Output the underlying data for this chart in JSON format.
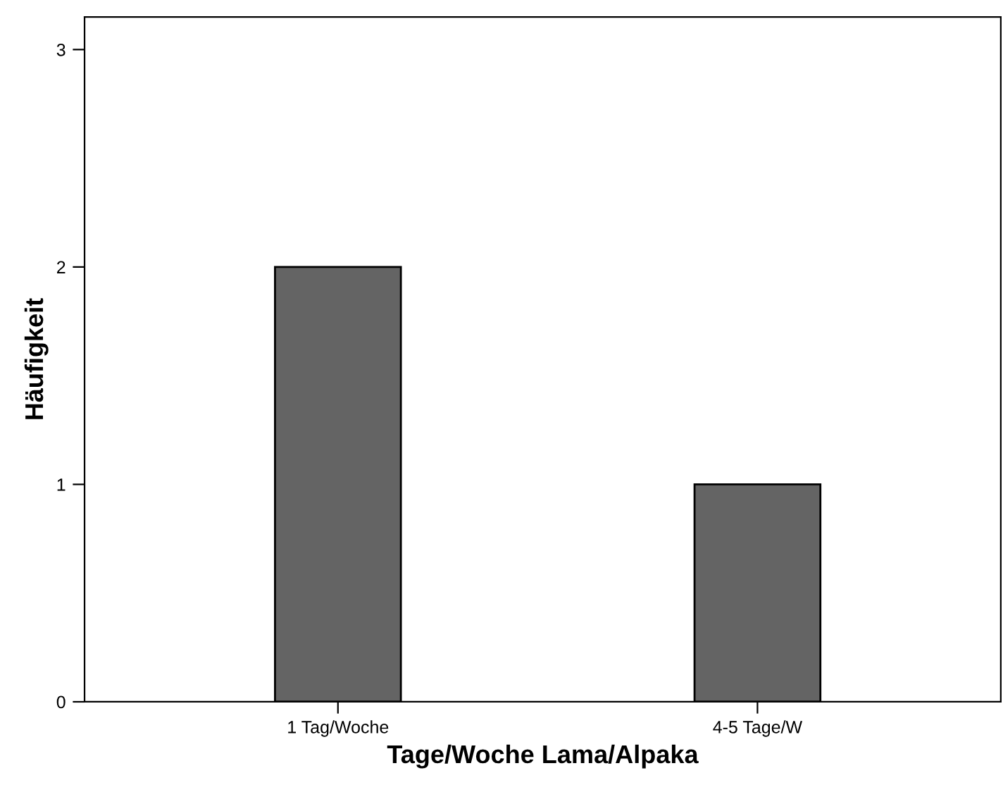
{
  "chart_data": {
    "type": "bar",
    "xlabel": "Tage/Woche Lama/Alpaka",
    "ylabel": "Häufigkeit",
    "categories": [
      "1 Tag/Woche",
      "4-5 Tage/W"
    ],
    "values": [
      2,
      1
    ],
    "color": "#646464",
    "ylim": [
      0,
      3.15
    ],
    "yticks": [
      0,
      1,
      2,
      3
    ],
    "grid": false,
    "legend": false
  }
}
